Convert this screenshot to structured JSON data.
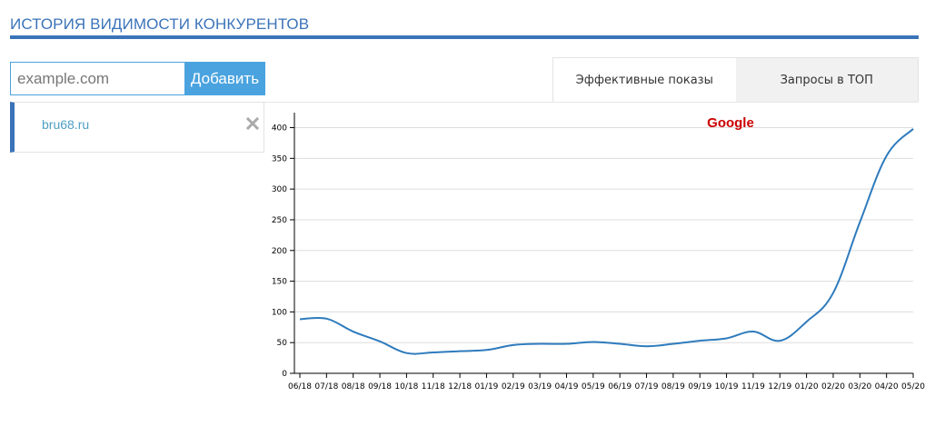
{
  "header": {
    "title": "ИСТОРИЯ ВИДИМОСТИ КОНКУРЕНТОВ"
  },
  "add_form": {
    "placeholder": "example.com",
    "value": "",
    "button_label": "Добавить"
  },
  "competitors": [
    {
      "domain": "bru68.ru"
    }
  ],
  "tabs": [
    {
      "label": "Эффективные показы",
      "active": true
    },
    {
      "label": "Запросы в ТОП",
      "active": false
    }
  ],
  "colors": {
    "accent": "#3b73b9",
    "button": "#4aa3df",
    "line": "#2e7bbd",
    "chart_title": "#cc0000"
  },
  "chart_data": {
    "type": "line",
    "title": "Google",
    "xlabel": "",
    "ylabel": "",
    "ylim": [
      0,
      420
    ],
    "yticks": [
      0,
      50,
      100,
      150,
      200,
      250,
      300,
      350,
      400
    ],
    "grid": true,
    "categories": [
      "06/18",
      "07/18",
      "08/18",
      "09/18",
      "10/18",
      "11/18",
      "12/18",
      "01/19",
      "02/19",
      "03/19",
      "04/19",
      "05/19",
      "06/19",
      "07/19",
      "08/19",
      "09/19",
      "10/19",
      "11/19",
      "12/19",
      "01/20",
      "02/20",
      "03/20",
      "04/20",
      "05/20"
    ],
    "series": [
      {
        "values": [
          88,
          89,
          68,
          52,
          33,
          34,
          36,
          38,
          46,
          48,
          48,
          51,
          48,
          44,
          48,
          53,
          57,
          68,
          53,
          84,
          131,
          246,
          354,
          398
        ]
      }
    ]
  }
}
